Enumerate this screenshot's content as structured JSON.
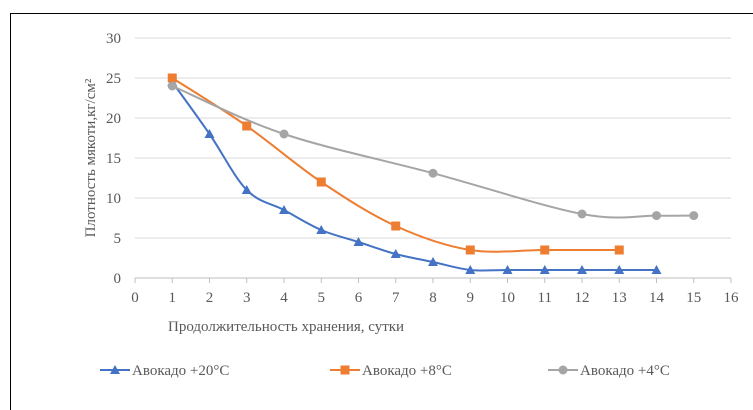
{
  "chart_data": {
    "type": "line",
    "title": "",
    "xlabel": "Продолжительность хранения, сутки",
    "ylabel": "Плотность мякоти,кг/см²",
    "xlim": [
      0,
      16
    ],
    "ylim": [
      0,
      30
    ],
    "x_ticks": [
      0,
      1,
      2,
      3,
      4,
      5,
      6,
      7,
      8,
      9,
      10,
      11,
      12,
      13,
      14,
      15,
      16
    ],
    "y_ticks": [
      0,
      5,
      10,
      15,
      20,
      25,
      30
    ],
    "grid": "horizontal",
    "legend_position": "bottom",
    "smooth": true,
    "series": [
      {
        "name": "Авокадо +20°С",
        "color": "#4472C4",
        "marker": "triangle",
        "x": [
          1,
          2,
          3,
          4,
          5,
          6,
          7,
          8,
          9,
          10,
          11,
          12,
          13,
          14
        ],
        "y": [
          24.5,
          18,
          11,
          8.5,
          6,
          4.5,
          3,
          2,
          1,
          1,
          1,
          1,
          1,
          1
        ]
      },
      {
        "name": "Авокадо +8°С",
        "color": "#ED7D31",
        "marker": "square",
        "x": [
          1,
          3,
          5,
          7,
          9,
          11,
          13
        ],
        "y": [
          25,
          19,
          12,
          6.5,
          3.5,
          3.5,
          3.5
        ]
      },
      {
        "name": "Авокадо +4°С",
        "color": "#A5A5A5",
        "marker": "circle",
        "x": [
          1,
          4,
          8,
          12,
          14,
          15
        ],
        "y": [
          24,
          18,
          13.1,
          8,
          7.8,
          7.8
        ]
      }
    ]
  }
}
